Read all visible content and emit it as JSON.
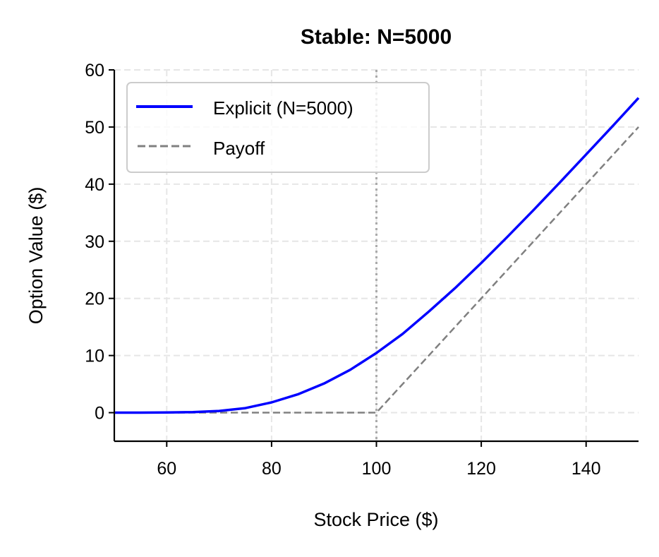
{
  "chart_data": {
    "type": "line",
    "title": "Stable: N=5000",
    "xlabel": "Stock Price ($)",
    "ylabel": "Option Value ($)",
    "xlim": [
      50,
      150
    ],
    "ylim": [
      -5,
      60
    ],
    "xticks": [
      60,
      80,
      100,
      120,
      140
    ],
    "yticks": [
      0,
      10,
      20,
      30,
      40,
      50,
      60
    ],
    "grid": true,
    "legend_position": "upper left",
    "strike_line": {
      "x": 100,
      "style": "dotted",
      "color": "#aaaaaa"
    },
    "series": [
      {
        "name": "Explicit (N=5000)",
        "color": "#0000ff",
        "style": "solid",
        "x": [
          50,
          55,
          60,
          65,
          70,
          75,
          80,
          85,
          90,
          95,
          100,
          105,
          110,
          115,
          120,
          125,
          130,
          135,
          140,
          145,
          150
        ],
        "values": [
          0.0,
          0.0,
          0.03,
          0.1,
          0.3,
          0.8,
          1.8,
          3.2,
          5.1,
          7.5,
          10.45,
          13.8,
          17.7,
          21.8,
          26.2,
          30.8,
          35.5,
          40.3,
          45.2,
          50.1,
          55.1
        ]
      },
      {
        "name": "Payoff",
        "color": "#808080",
        "style": "dashed",
        "x": [
          50,
          100,
          150
        ],
        "values": [
          0,
          0,
          50
        ]
      }
    ]
  },
  "figure": {
    "title": "Stable: N=5000",
    "xlabel": "Stock Price ($)",
    "ylabel": "Option Value ($)",
    "xtick_labels": [
      "60",
      "80",
      "100",
      "120",
      "140"
    ],
    "ytick_labels": [
      "0",
      "10",
      "20",
      "30",
      "40",
      "50",
      "60"
    ],
    "legend": [
      "Explicit (N=5000)",
      "Payoff"
    ]
  }
}
